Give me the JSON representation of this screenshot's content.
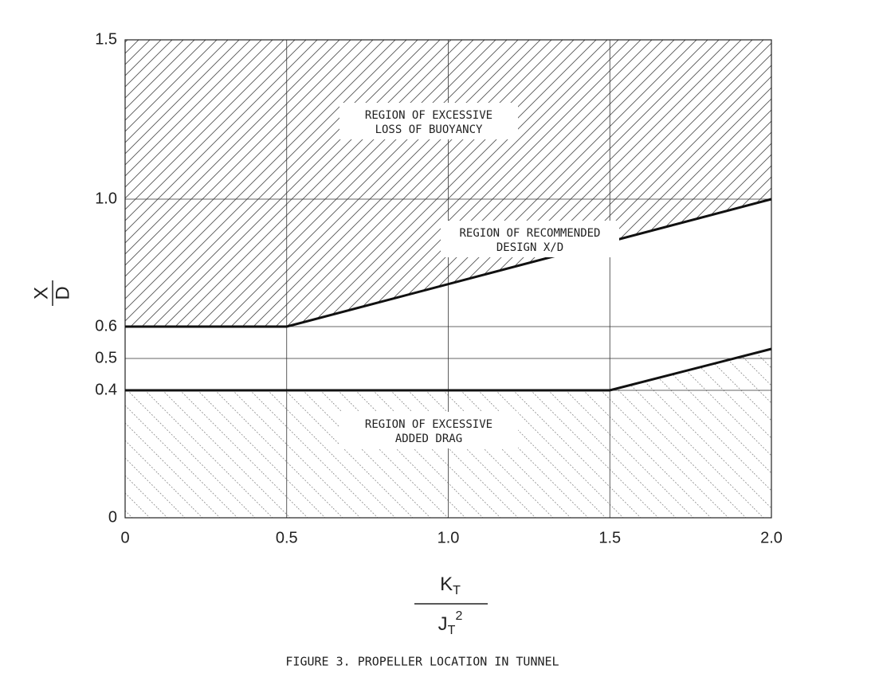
{
  "chart_data": {
    "type": "line",
    "caption": "FIGURE 3.  PROPELLER LOCATION IN TUNNEL",
    "x_label": {
      "numerator": "K",
      "numerator_sub": "T",
      "denominator": "J",
      "denominator_sub": "T",
      "denominator_sup": "2"
    },
    "y_label": {
      "numerator": "X",
      "denominator": "D"
    },
    "series": [
      {
        "x": [
          0,
          0.5,
          2.0
        ],
        "values": [
          0.6,
          0.6,
          1.0
        ],
        "color": "#111111"
      },
      {
        "x": [
          0,
          1.5,
          2.0
        ],
        "values": [
          0.4,
          0.4,
          0.53
        ],
        "color": "#111111"
      }
    ],
    "annotations": [
      {
        "lines": [
          "REGION OF EXCESSIVE",
          "LOSS OF BUOYANCY"
        ]
      },
      {
        "lines": [
          "REGION OF RECOMMENDED",
          "DESIGN X/D"
        ]
      },
      {
        "lines": [
          "REGION OF EXCESSIVE",
          "ADDED DRAG"
        ]
      }
    ],
    "xlim": [
      0,
      2.0
    ],
    "ylim": [
      0,
      1.5
    ],
    "xticks": [
      0,
      0.5,
      {
        "value": 1,
        "label": "1.0"
      },
      1.5,
      {
        "value": 2,
        "label": "2.0"
      }
    ],
    "yticks": [
      0,
      0.4,
      0.5,
      0.6,
      {
        "value": 1,
        "label": "1.0"
      },
      1.5
    ],
    "grid": true
  }
}
